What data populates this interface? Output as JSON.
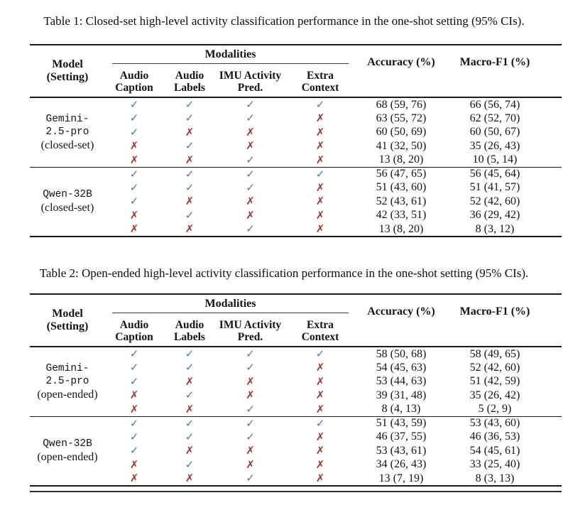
{
  "colors": {
    "check": "#4878a8",
    "cross": "#a93330",
    "rule": "#1a1a1a",
    "background": "#ffffff"
  },
  "glyphs": {
    "check": "✓",
    "cross": "✗"
  },
  "tables": [
    {
      "caption": "Table 1: Closed-set high-level activity classification performance in the one-shot setting (95% CIs).",
      "header": {
        "model_line1": "Model",
        "model_line2": "(Setting)",
        "modalities": "Modalities",
        "subcols": [
          {
            "l1": "Audio",
            "l2": "Caption"
          },
          {
            "l1": "Audio",
            "l2": "Labels"
          },
          {
            "l1": "IMU Activity",
            "l2": "Pred."
          },
          {
            "l1": "Extra",
            "l2": "Context"
          }
        ],
        "accuracy": "Accuracy (%)",
        "macro_f1": "Macro-F1 (%)"
      },
      "groups": [
        {
          "model_lines": [
            "Gemini-",
            "2.5-pro"
          ],
          "setting": "(closed-set)",
          "rows": [
            {
              "modalities": [
                true,
                true,
                true,
                true
              ],
              "accuracy": "68 (59, 76)",
              "macro_f1": "66 (56, 74)"
            },
            {
              "modalities": [
                true,
                true,
                true,
                false
              ],
              "accuracy": "63 (55, 72)",
              "macro_f1": "62 (52, 70)"
            },
            {
              "modalities": [
                true,
                false,
                false,
                false
              ],
              "accuracy": "60 (50, 69)",
              "macro_f1": "60 (50, 67)"
            },
            {
              "modalities": [
                false,
                true,
                false,
                false
              ],
              "accuracy": "41 (32, 50)",
              "macro_f1": "35 (26, 43)"
            },
            {
              "modalities": [
                false,
                false,
                true,
                false
              ],
              "accuracy": "13 (8, 20)",
              "macro_f1": "10 (5, 14)"
            }
          ]
        },
        {
          "model_lines": [
            "Qwen-32B"
          ],
          "setting": "(closed-set)",
          "rows": [
            {
              "modalities": [
                true,
                true,
                true,
                true
              ],
              "accuracy": "56 (47, 65)",
              "macro_f1": "56 (45, 64)"
            },
            {
              "modalities": [
                true,
                true,
                true,
                false
              ],
              "accuracy": "51 (43, 60)",
              "macro_f1": "51 (41, 57)"
            },
            {
              "modalities": [
                true,
                false,
                false,
                false
              ],
              "accuracy": "52 (43, 61)",
              "macro_f1": "52 (42, 60)"
            },
            {
              "modalities": [
                false,
                true,
                false,
                false
              ],
              "accuracy": "42 (33, 51)",
              "macro_f1": "36 (29, 42)"
            },
            {
              "modalities": [
                false,
                false,
                true,
                false
              ],
              "accuracy": "13 (8, 20)",
              "macro_f1": "8 (3, 12)"
            }
          ]
        }
      ]
    },
    {
      "caption": "Table 2: Open-ended high-level activity classification performance in the one-shot setting (95% CIs).",
      "header": {
        "model_line1": "Model",
        "model_line2": "(Setting)",
        "modalities": "Modalities",
        "subcols": [
          {
            "l1": "Audio",
            "l2": "Caption"
          },
          {
            "l1": "Audio",
            "l2": "Labels"
          },
          {
            "l1": "IMU Activity",
            "l2": "Pred."
          },
          {
            "l1": "Extra",
            "l2": "Context"
          }
        ],
        "accuracy": "Accuracy (%)",
        "macro_f1": "Macro-F1 (%)"
      },
      "groups": [
        {
          "model_lines": [
            "Gemini-",
            "2.5-pro"
          ],
          "setting": "(open-ended)",
          "rows": [
            {
              "modalities": [
                true,
                true,
                true,
                true
              ],
              "accuracy": "58 (50, 68)",
              "macro_f1": "58 (49, 65)"
            },
            {
              "modalities": [
                true,
                true,
                true,
                false
              ],
              "accuracy": "54 (45, 63)",
              "macro_f1": "52 (42, 60)"
            },
            {
              "modalities": [
                true,
                false,
                false,
                false
              ],
              "accuracy": "53 (44, 63)",
              "macro_f1": "51 (42, 59)"
            },
            {
              "modalities": [
                false,
                true,
                false,
                false
              ],
              "accuracy": "39 (31, 48)",
              "macro_f1": "35 (26, 42)"
            },
            {
              "modalities": [
                false,
                false,
                true,
                false
              ],
              "accuracy": "8 (4, 13)",
              "macro_f1": "5 (2, 9)"
            }
          ]
        },
        {
          "model_lines": [
            "Qwen-32B"
          ],
          "setting": "(open-ended)",
          "rows": [
            {
              "modalities": [
                true,
                true,
                true,
                true
              ],
              "accuracy": "51 (43, 59)",
              "macro_f1": "53 (43, 60)"
            },
            {
              "modalities": [
                true,
                true,
                true,
                false
              ],
              "accuracy": "46 (37, 55)",
              "macro_f1": "46 (36, 53)"
            },
            {
              "modalities": [
                true,
                false,
                false,
                false
              ],
              "accuracy": "53 (43, 61)",
              "macro_f1": "54 (45, 61)"
            },
            {
              "modalities": [
                false,
                true,
                false,
                false
              ],
              "accuracy": "34 (26, 43)",
              "macro_f1": "33 (25, 40)"
            },
            {
              "modalities": [
                false,
                false,
                true,
                false
              ],
              "accuracy": "13 (7, 19)",
              "macro_f1": "8 (3, 13)"
            }
          ]
        }
      ]
    }
  ]
}
